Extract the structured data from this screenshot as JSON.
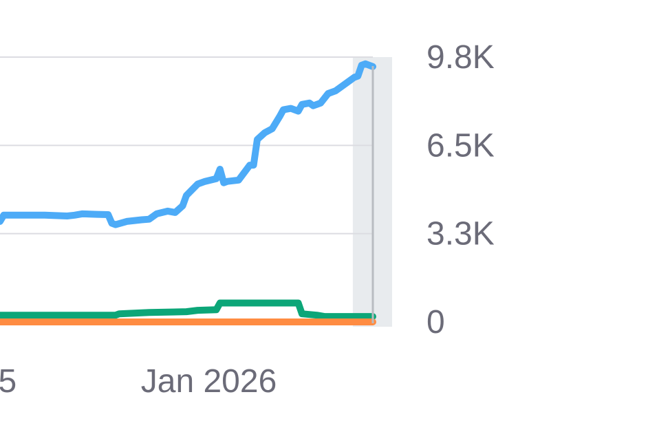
{
  "chart_data": {
    "type": "line",
    "title": "",
    "xlabel": "",
    "ylabel": "",
    "ylim": [
      0,
      9800
    ],
    "y_axis_position": "right",
    "y_ticks": [
      {
        "value": 0,
        "label": "0"
      },
      {
        "value": 3267,
        "label": "3.3K"
      },
      {
        "value": 6533,
        "label": "6.5K"
      },
      {
        "value": 9800,
        "label": "9.8K"
      }
    ],
    "x_ticks": [
      {
        "value": 2,
        "label": "5"
      },
      {
        "value": 56,
        "label": "Jan 2026"
      }
    ],
    "xlim": [
      0,
      100
    ],
    "grid": true,
    "legend": "none",
    "highlight_band": {
      "x_from": 95,
      "x_to": 100,
      "color": "#e8ebee"
    },
    "series": [
      {
        "color": "#4dabf7",
        "points": [
          [
            0,
            3720
          ],
          [
            1,
            3950
          ],
          [
            5,
            3950
          ],
          [
            12,
            3950
          ],
          [
            18,
            3920
          ],
          [
            20,
            3950
          ],
          [
            22,
            4000
          ],
          [
            26,
            3980
          ],
          [
            29,
            3970
          ],
          [
            30,
            3650
          ],
          [
            31,
            3600
          ],
          [
            34,
            3720
          ],
          [
            38,
            3780
          ],
          [
            40,
            3800
          ],
          [
            42,
            4000
          ],
          [
            45,
            4100
          ],
          [
            47,
            4050
          ],
          [
            49,
            4300
          ],
          [
            50,
            4680
          ],
          [
            53,
            5100
          ],
          [
            55,
            5200
          ],
          [
            58,
            5300
          ],
          [
            59,
            5650
          ],
          [
            60,
            5150
          ],
          [
            61,
            5200
          ],
          [
            64,
            5250
          ],
          [
            67,
            5800
          ],
          [
            68,
            5800
          ],
          [
            69,
            6750
          ],
          [
            71,
            7000
          ],
          [
            73,
            7150
          ],
          [
            75,
            7600
          ],
          [
            76,
            7850
          ],
          [
            78,
            7900
          ],
          [
            80,
            7800
          ],
          [
            81,
            8050
          ],
          [
            83,
            8100
          ],
          [
            84,
            8000
          ],
          [
            86,
            8100
          ],
          [
            88,
            8450
          ],
          [
            90,
            8550
          ],
          [
            92,
            8750
          ],
          [
            94,
            8950
          ],
          [
            95,
            9050
          ],
          [
            96,
            9100
          ],
          [
            97,
            9500
          ],
          [
            98,
            9550
          ],
          [
            99,
            9500
          ],
          [
            100,
            9450
          ]
        ]
      },
      {
        "color": "#0ca678",
        "points": [
          [
            0,
            250
          ],
          [
            10,
            250
          ],
          [
            20,
            250
          ],
          [
            31,
            250
          ],
          [
            32,
            300
          ],
          [
            40,
            350
          ],
          [
            50,
            380
          ],
          [
            53,
            430
          ],
          [
            58,
            450
          ],
          [
            59,
            700
          ],
          [
            61,
            700
          ],
          [
            70,
            700
          ],
          [
            80,
            700
          ],
          [
            81,
            300
          ],
          [
            85,
            250
          ],
          [
            87,
            200
          ],
          [
            95,
            200
          ],
          [
            100,
            200
          ]
        ]
      },
      {
        "color": "#ff8c42",
        "points": [
          [
            0,
            0
          ],
          [
            100,
            0
          ]
        ]
      }
    ]
  }
}
